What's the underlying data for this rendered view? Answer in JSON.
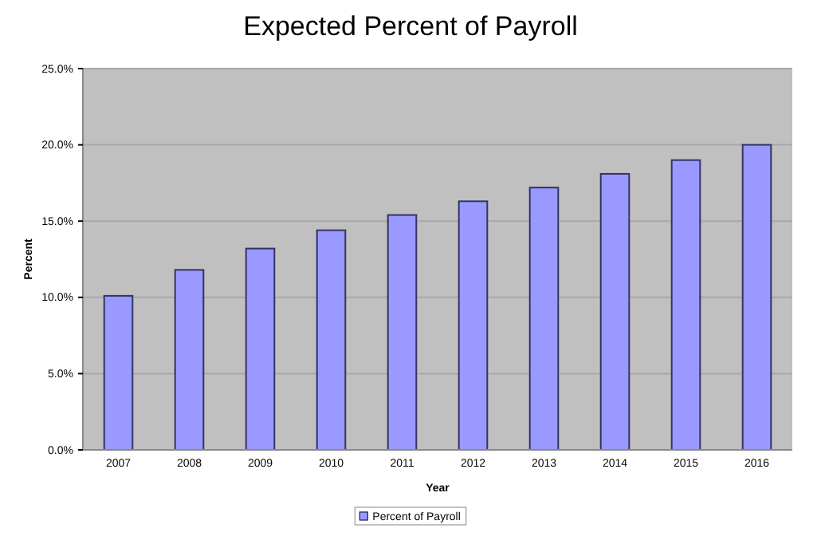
{
  "chart_data": {
    "type": "bar",
    "title": "Expected Percent of Payroll",
    "xlabel": "Year",
    "ylabel": "Percent",
    "categories": [
      "2007",
      "2008",
      "2009",
      "2010",
      "2011",
      "2012",
      "2013",
      "2014",
      "2015",
      "2016"
    ],
    "series": [
      {
        "name": "Percent of Payroll",
        "color": "#9999ff",
        "values": [
          10.1,
          11.8,
          13.2,
          14.4,
          15.4,
          16.3,
          17.2,
          18.1,
          19.0,
          20.0
        ]
      }
    ],
    "ylim": [
      0,
      25
    ],
    "yticks": [
      {
        "value": 0,
        "label": "0.0%"
      },
      {
        "value": 5,
        "label": "5.0%"
      },
      {
        "value": 10,
        "label": "10.0%"
      },
      {
        "value": 15,
        "label": "15.0%"
      },
      {
        "value": 20,
        "label": "20.0%"
      },
      {
        "value": 25,
        "label": "25.0%"
      }
    ],
    "grid": "y",
    "legend": "bottom"
  }
}
